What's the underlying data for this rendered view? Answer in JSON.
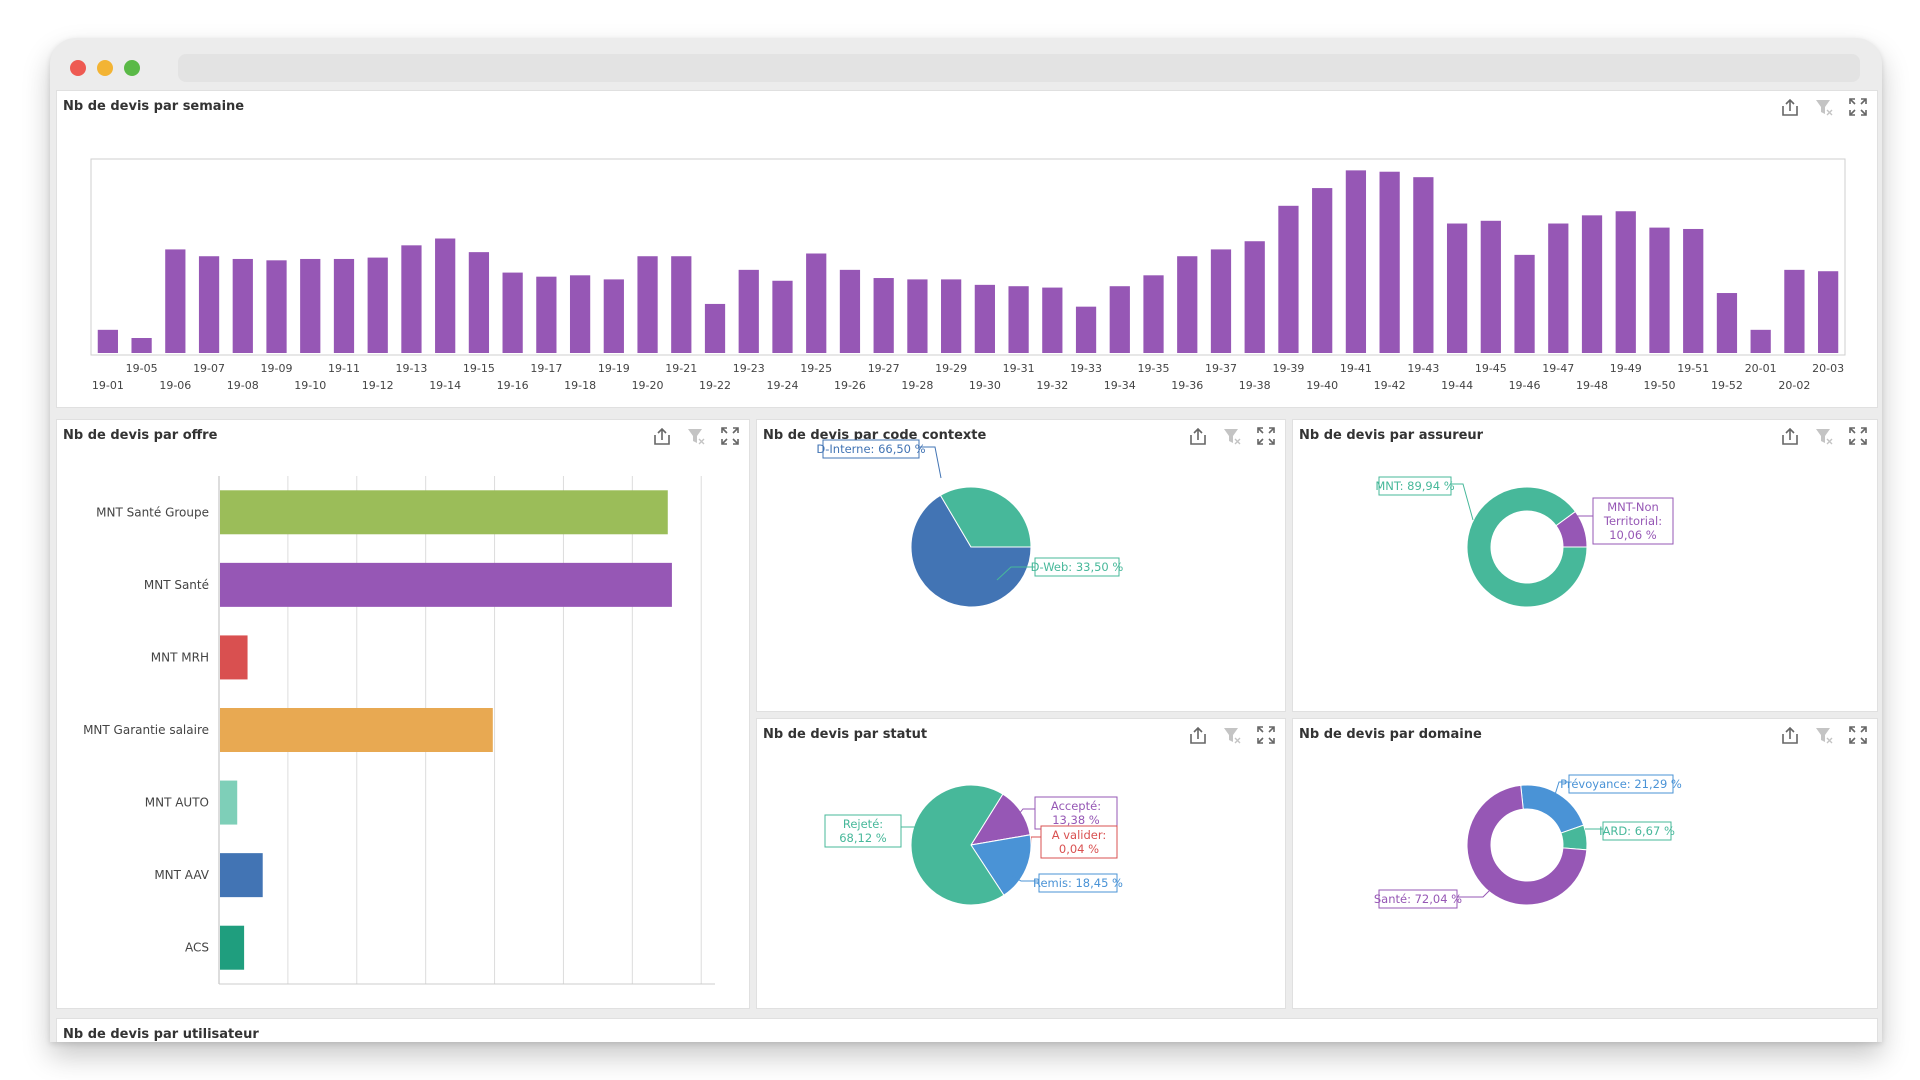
{
  "window": {
    "controls": [
      "close",
      "minimize",
      "maximize"
    ],
    "colors": {
      "close": "#ee5a52",
      "minimize": "#f3b434",
      "maximize": "#5ab947"
    }
  },
  "panels": {
    "weekly": {
      "title": "Nb de devis par semaine",
      "chart_data": {
        "type": "bar",
        "categories": [
          "19-01",
          "19-05",
          "19-06",
          "19-07",
          "19-08",
          "19-09",
          "19-10",
          "19-11",
          "19-12",
          "19-13",
          "19-14",
          "19-15",
          "19-16",
          "19-17",
          "19-18",
          "19-19",
          "19-20",
          "19-21",
          "19-22",
          "19-23",
          "19-24",
          "19-25",
          "19-26",
          "19-27",
          "19-28",
          "19-29",
          "19-30",
          "19-31",
          "19-32",
          "19-33",
          "19-34",
          "19-35",
          "19-36",
          "19-37",
          "19-38",
          "19-39",
          "19-40",
          "19-41",
          "19-42",
          "19-43",
          "19-44",
          "19-45",
          "19-46",
          "19-47",
          "19-48",
          "19-49",
          "19-50",
          "19-51",
          "19-52",
          "20-01",
          "20-02",
          "20-03"
        ],
        "values": [
          17,
          11,
          76,
          71,
          69,
          68,
          69,
          69,
          70,
          79,
          84,
          74,
          59,
          56,
          57,
          54,
          71,
          71,
          36,
          61,
          53,
          73,
          61,
          55,
          54,
          54,
          50,
          49,
          48,
          34,
          49,
          57,
          71,
          76,
          82,
          108,
          121,
          134,
          133,
          129,
          95,
          97,
          72,
          95,
          101,
          104,
          92,
          91,
          44,
          17,
          61,
          60
        ],
        "color": "#9657b5",
        "ylim": [
          0,
          135
        ],
        "legend": "none"
      }
    },
    "offre": {
      "title": "Nb de devis par offre",
      "chart_data": {
        "type": "bar",
        "orientation": "horizontal",
        "categories": [
          "MNT Santé Groupe",
          "MNT Santé",
          "MNT MRH",
          "MNT Garantie salaire",
          "MNT AUTO",
          "MNT AAV",
          "ACS"
        ],
        "values": [
          6.5,
          6.56,
          0.4,
          3.96,
          0.25,
          0.62,
          0.35
        ],
        "colors": [
          "#9bbd59",
          "#9657b5",
          "#d95050",
          "#e8a952",
          "#7ecfb8",
          "#4274b4",
          "#1f9e7e"
        ],
        "xlim": [
          0,
          7.2
        ],
        "grid": true
      }
    },
    "contexte": {
      "title": "Nb de devis par code contexte",
      "chart_data": {
        "type": "pie",
        "slices": [
          {
            "label": "D-Interne: 66,50 %",
            "value": 66.5,
            "color": "#4274b4"
          },
          {
            "label": "D-Web: 33,50 %",
            "value": 33.5,
            "color": "#47b89a"
          }
        ]
      }
    },
    "assureur": {
      "title": "Nb de devis par assureur",
      "chart_data": {
        "type": "pie",
        "donut": true,
        "slices": [
          {
            "label": "MNT: 89,94 %",
            "value": 89.94,
            "color": "#47b89a"
          },
          {
            "label": "MNT-Non Territorial: 10,06 %",
            "lines": [
              "MNT-Non",
              "Territorial:",
              "10,06 %"
            ],
            "value": 10.06,
            "color": "#9657b5"
          }
        ]
      }
    },
    "statut": {
      "title": "Nb de devis par statut",
      "chart_data": {
        "type": "pie",
        "slices": [
          {
            "label": "Accepté: 13,38 %",
            "lines": [
              "Accepté:",
              "13,38 %"
            ],
            "value": 13.38,
            "color": "#9657b5"
          },
          {
            "label": "A valider: 0,04 %",
            "lines": [
              "A valider:",
              "0,04 %"
            ],
            "value": 0.04,
            "color": "#d95050"
          },
          {
            "label": "Remis: 18,45 %",
            "value": 18.45,
            "color": "#4a93d6"
          },
          {
            "label": "Rejeté: 68,12 %",
            "lines": [
              "Rejeté:",
              "68,12 %"
            ],
            "value": 68.12,
            "color": "#47b89a"
          }
        ]
      }
    },
    "domaine": {
      "title": "Nb de devis par domaine",
      "chart_data": {
        "type": "pie",
        "donut": true,
        "slices": [
          {
            "label": "Prévoyance: 21,29 %",
            "value": 21.29,
            "color": "#4a93d6"
          },
          {
            "label": "IARD: 6,67 %",
            "value": 6.67,
            "color": "#47b89a"
          },
          {
            "label": "Santé: 72,04 %",
            "value": 72.04,
            "color": "#9657b5"
          }
        ]
      }
    },
    "bottom": {
      "title": "Nb de devis par utilisateur"
    }
  },
  "toolbar_icons": [
    "export-icon",
    "clear-filter-icon",
    "maximize-icon"
  ]
}
